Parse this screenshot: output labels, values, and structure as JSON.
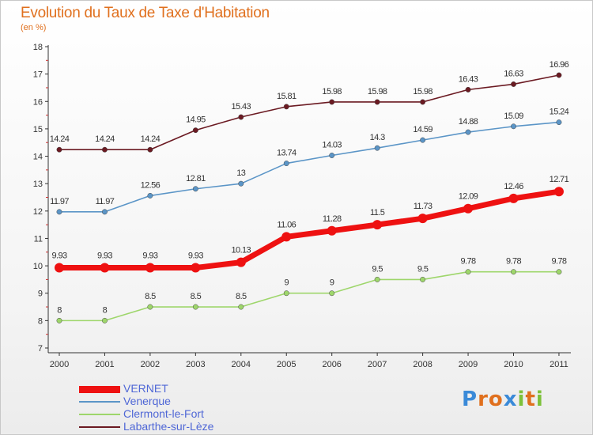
{
  "title": "Evolution du Taux de Taxe d'Habitation",
  "unit_label": "(en %)",
  "logo_text": "Proxiti",
  "chart_data": {
    "type": "line",
    "title": "Evolution du Taux de Taxe d'Habitation",
    "ylabel": "(en %)",
    "xlabel": "",
    "ylim": [
      7,
      18
    ],
    "yticks": [
      7,
      8,
      9,
      10,
      11,
      12,
      13,
      14,
      15,
      16,
      17,
      18
    ],
    "x": [
      "2000",
      "2001",
      "2002",
      "2003",
      "2004",
      "2005",
      "2006",
      "2007",
      "2008",
      "2009",
      "2010",
      "2011"
    ],
    "grid": false,
    "legend_position": "bottom-left",
    "series": [
      {
        "name": "Labarthe-sur-Lèze",
        "color": "#6b1a22",
        "values": [
          14.24,
          14.24,
          14.24,
          14.95,
          15.43,
          15.81,
          15.98,
          15.98,
          15.98,
          16.43,
          16.63,
          16.96
        ],
        "labels": [
          "14.24",
          "14.24",
          "14.24",
          "14.95",
          "15.43",
          "15.81",
          "15.98",
          "15.98",
          "15.98",
          "16.43",
          "16.63",
          "16.96"
        ]
      },
      {
        "name": "Venerque",
        "color": "#5b95c7",
        "values": [
          11.97,
          11.97,
          12.56,
          12.81,
          13,
          13.74,
          14.03,
          14.3,
          14.59,
          14.88,
          15.09,
          15.24
        ],
        "labels": [
          "11.97",
          "11.97",
          "12.56",
          "12.81",
          "13",
          "13.74",
          "14.03",
          "14.3",
          "14.59",
          "14.88",
          "15.09",
          "15.24"
        ]
      },
      {
        "name": "VERNET",
        "color": "#ee1111",
        "values": [
          9.93,
          9.93,
          9.93,
          9.93,
          10.13,
          11.06,
          11.28,
          11.5,
          11.73,
          12.09,
          12.46,
          12.71
        ],
        "labels": [
          "9.93",
          "9.93",
          "9.93",
          "9.93",
          "10.13",
          "11.06",
          "11.28",
          "11.5",
          "11.73",
          "12.09",
          "12.46",
          "12.71"
        ]
      },
      {
        "name": "Clermont-le-Fort",
        "color": "#9ed66b",
        "values": [
          8,
          8,
          8.5,
          8.5,
          8.5,
          9,
          9,
          9.5,
          9.5,
          9.78,
          9.78,
          9.78
        ],
        "labels": [
          "8",
          "8",
          "8.5",
          "8.5",
          "8.5",
          "9",
          "9",
          "9.5",
          "9.5",
          "9.78",
          "9.78",
          "9.78"
        ]
      }
    ]
  },
  "legend": [
    {
      "label": "VERNET",
      "color": "#ee1111"
    },
    {
      "label": "Venerque",
      "color": "#5b95c7"
    },
    {
      "label": "Clermont-le-Fort",
      "color": "#9ed66b"
    },
    {
      "label": "Labarthe-sur-Lèze",
      "color": "#6b1a22"
    }
  ]
}
